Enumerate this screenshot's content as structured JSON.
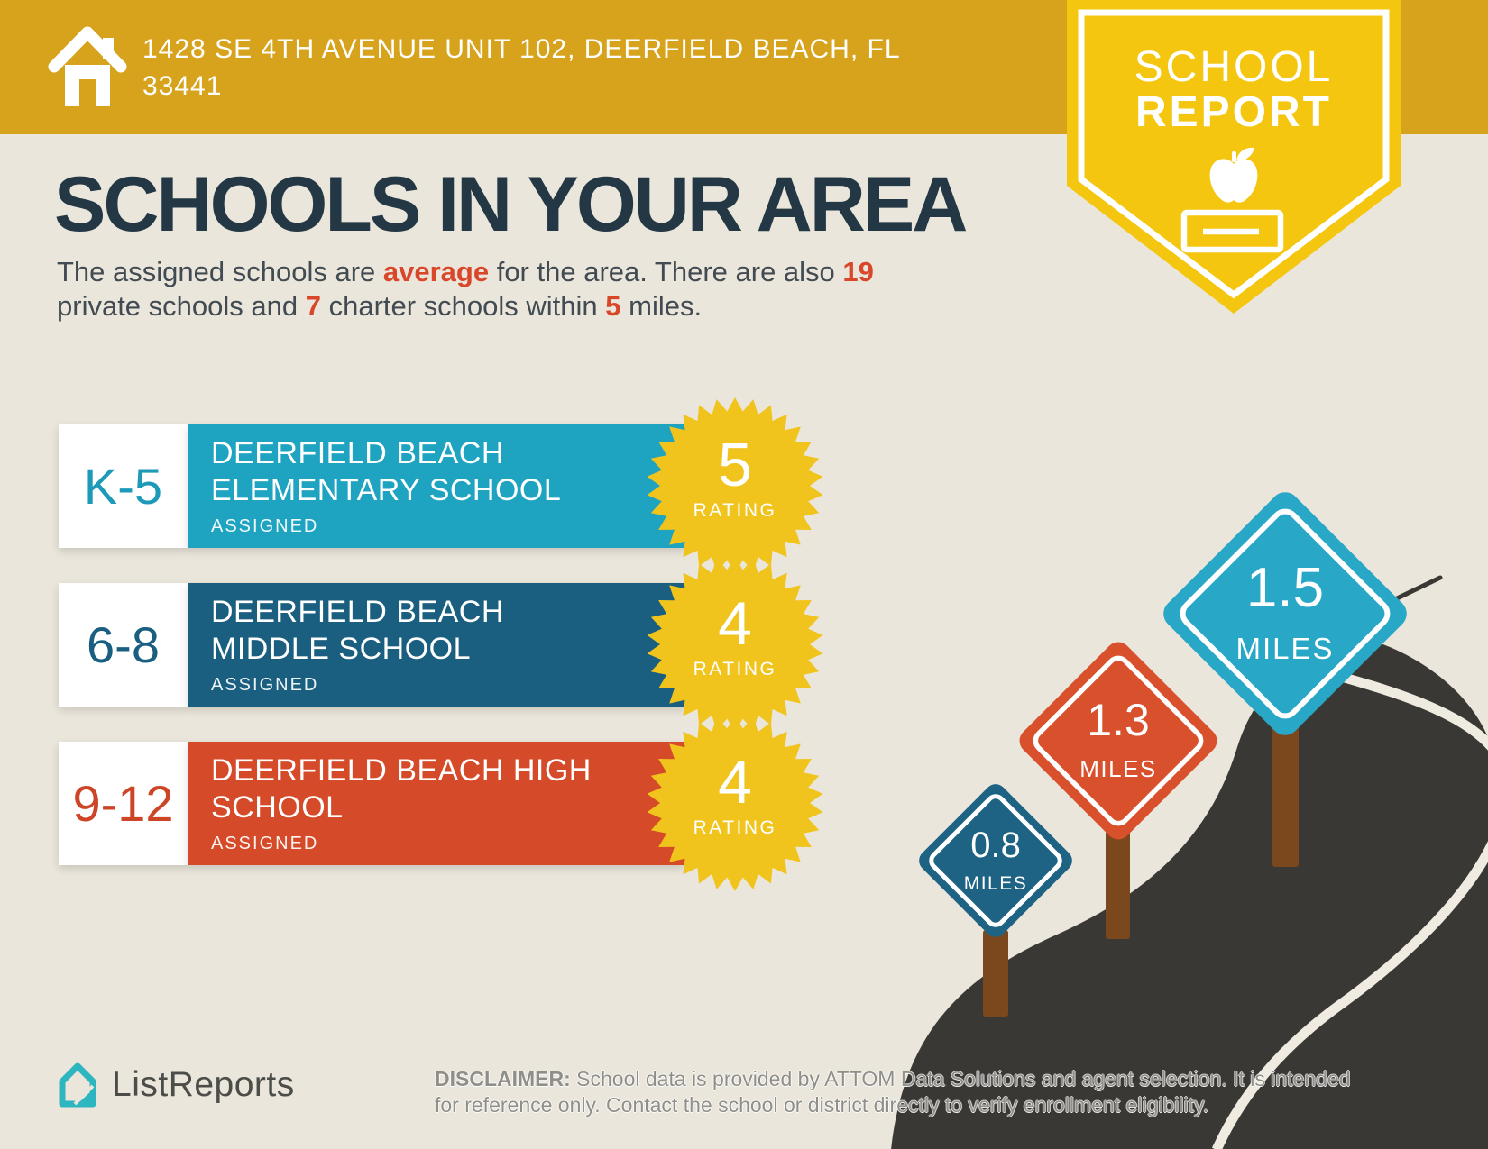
{
  "header": {
    "address_line1": "1428 SE 4TH AVENUE UNIT 102, DEERFIELD BEACH, FL",
    "address_line2": "33441"
  },
  "badge": {
    "title_line1": "SCHOOL",
    "title_line2": "REPORT"
  },
  "main": {
    "title": "SCHOOLS IN YOUR AREA",
    "intro_line1": [
      {
        "text": "The assigned schools are "
      },
      {
        "text": "average",
        "bold": true
      },
      {
        "text": " for the area. There are also "
      },
      {
        "text": "19",
        "bold": true
      }
    ],
    "intro_line2": [
      {
        "text": "private schools and "
      },
      {
        "text": "7",
        "bold": true
      },
      {
        "text": " charter schools within "
      },
      {
        "text": "5",
        "bold": true
      },
      {
        "text": " miles."
      }
    ]
  },
  "schools": [
    {
      "grades": "K-5",
      "name_line1": "DEERFIELD BEACH",
      "name_line2": "ELEMENTARY SCHOOL",
      "status": "ASSIGNED",
      "rating": "5",
      "rating_label": "RATING",
      "bar_color": "#1ea3c1",
      "grade_color": "#1d9ab8"
    },
    {
      "grades": "6-8",
      "name_line1": "DEERFIELD BEACH",
      "name_line2": "MIDDLE SCHOOL",
      "status": "ASSIGNED",
      "rating": "4",
      "rating_label": "RATING",
      "bar_color": "#1a5f80",
      "grade_color": "#1a5f80"
    },
    {
      "grades": "9-12",
      "name_line1": "DEERFIELD BEACH HIGH",
      "name_line2": "SCHOOL",
      "status": "ASSIGNED",
      "rating": "4",
      "rating_label": "RATING",
      "bar_color": "#d54a28",
      "grade_color": "#cc4527"
    }
  ],
  "signs": [
    {
      "distance": "0.8",
      "unit": "MILES",
      "color": "#1e6384"
    },
    {
      "distance": "1.3",
      "unit": "MILES",
      "color": "#d8502c"
    },
    {
      "distance": "1.5",
      "unit": "MILES",
      "color": "#29a7c6"
    }
  ],
  "footer": {
    "brand": "ListReports",
    "disclaimer_label": "DISCLAIMER:",
    "disclaimer_line1_rest": "School data is provided by ATTOM Data Solutions and agent selection. It is intended",
    "disclaimer_line2": "for reference only. Contact the school or district directly to verify enrollment eligibility."
  },
  "colors": {
    "banner_gold": "#d7a31c",
    "badge_yellow": "#f4c60f",
    "background": "#eae6db",
    "heading_navy": "#233744",
    "accent_red": "#d9472b",
    "rating_yellow": "#f0c41c",
    "road_dark": "#3a3835",
    "road_line": "#efebe0",
    "post_brown": "#7a481c",
    "brand_teal": "#2db5c0"
  }
}
